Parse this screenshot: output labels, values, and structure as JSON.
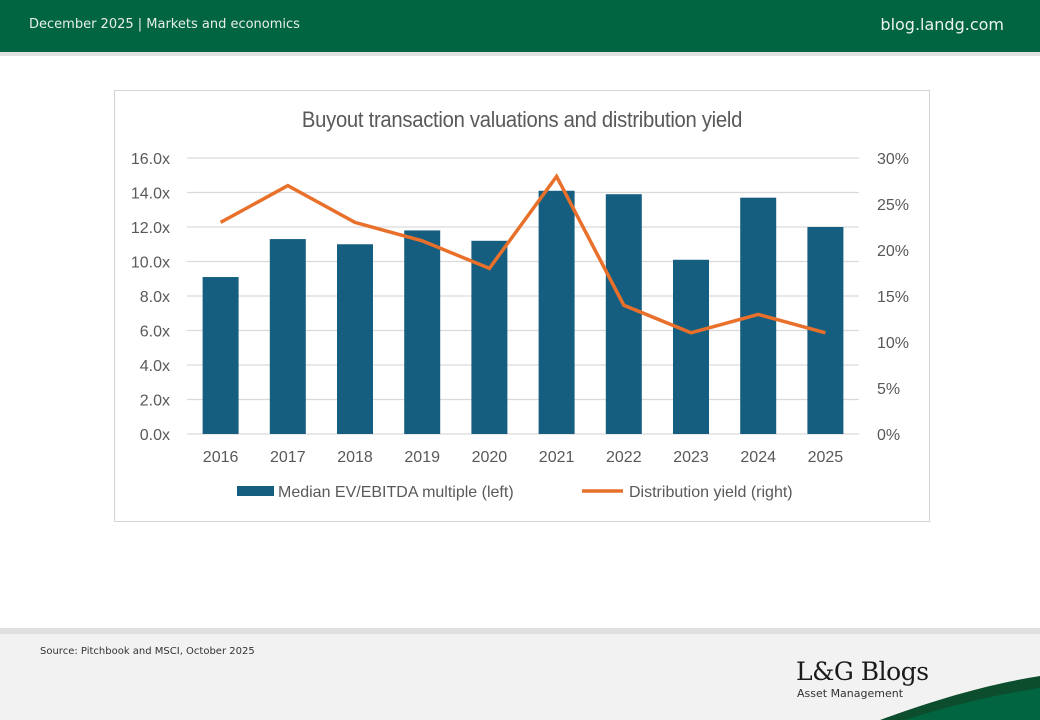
{
  "header": {
    "left_text": "December 2025 |  Markets and economics",
    "right_text": "blog.landg.com"
  },
  "footer": {
    "source": "Source: Pitchbook and MSCI, October 2025",
    "brand": "L&G Blogs",
    "brand_sub": "Asset Management"
  },
  "colors": {
    "header_green": "#006540",
    "bar_blue": "#165e80",
    "line_orange": "#e8702a"
  },
  "chart_data": {
    "type": "bar",
    "title": "Buyout transaction valuations and distribution yield",
    "categories": [
      "2016",
      "2017",
      "2018",
      "2019",
      "2020",
      "2021",
      "2022",
      "2023",
      "2024",
      "2025"
    ],
    "series": [
      {
        "name": "Median EV/EBITDA multiple (left)",
        "type": "bar",
        "axis": "left",
        "values": [
          9.1,
          11.3,
          11.0,
          11.8,
          11.2,
          14.1,
          13.9,
          10.1,
          13.7,
          12.0
        ]
      },
      {
        "name": "Distribution yield (right)",
        "type": "line",
        "axis": "right",
        "values": [
          23,
          27,
          23,
          21,
          18,
          28,
          14,
          11,
          13,
          11
        ]
      }
    ],
    "y_left": {
      "min": 0,
      "max": 16,
      "step": 2,
      "tick_labels": [
        "0.0x",
        "2.0x",
        "4.0x",
        "6.0x",
        "8.0x",
        "10.0x",
        "12.0x",
        "14.0x",
        "16.0x"
      ]
    },
    "y_right": {
      "min": 0,
      "max": 30,
      "step": 5,
      "tick_labels": [
        "0%",
        "5%",
        "10%",
        "15%",
        "20%",
        "25%",
        "30%"
      ]
    },
    "xlabel": "",
    "ylabel": "",
    "grid": true,
    "legend": "bottom"
  }
}
